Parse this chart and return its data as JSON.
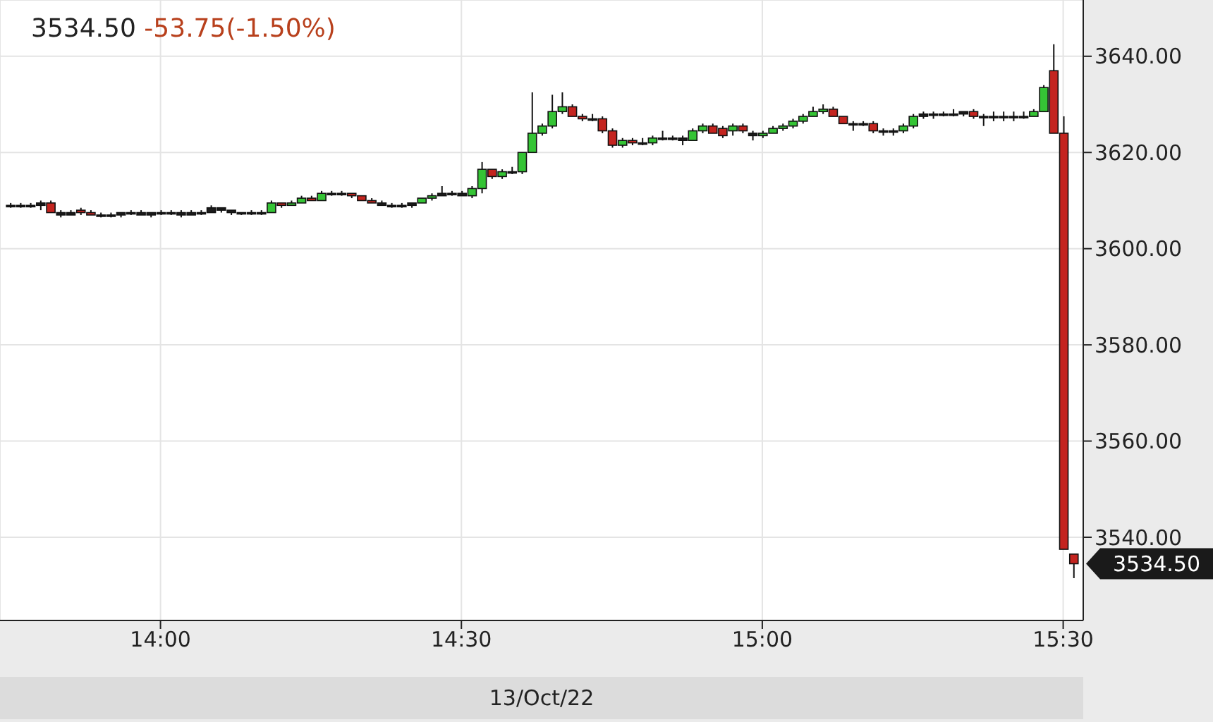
{
  "chart_data": {
    "type": "candlestick",
    "title": "3534.50",
    "subtitle": "-53.75(-1.50%)",
    "xlabel": "13/Oct/22",
    "annotations": [
      "3534.50"
    ],
    "x": [
      13.75,
      13.7667,
      13.7833,
      13.8,
      13.8167,
      13.8333,
      13.85,
      13.8667,
      13.8833,
      13.9,
      13.9167,
      13.9333,
      13.95,
      13.9667,
      13.9833,
      14,
      14.0167,
      14.0333,
      14.05,
      14.0667,
      14.0833,
      14.1,
      14.1167,
      14.1333,
      14.15,
      14.1667,
      14.1833,
      14.2,
      14.2167,
      14.2333,
      14.25,
      14.2667,
      14.2833,
      14.3,
      14.3167,
      14.3333,
      14.35,
      14.3667,
      14.3833,
      14.4,
      14.4167,
      14.4333,
      14.45,
      14.4667,
      14.4833,
      14.5,
      14.5167,
      14.5333,
      14.55,
      14.5667,
      14.5833,
      14.6,
      14.6167,
      14.6333,
      14.65,
      14.6667,
      14.6833,
      14.7,
      14.7167,
      14.7333,
      14.75,
      14.7667,
      14.7833,
      14.8,
      14.8167,
      14.8333,
      14.85,
      14.8667,
      14.8833,
      14.9,
      14.9167,
      14.9333,
      14.95,
      14.9667,
      14.9833,
      15,
      15.0167,
      15.0333,
      15.05,
      15.0667,
      15.0833,
      15.1,
      15.1167,
      15.1333,
      15.15,
      15.1667,
      15.1833,
      15.2,
      15.2167,
      15.2333,
      15.25,
      15.2667,
      15.2833,
      15.3,
      15.3167,
      15.3333,
      15.35,
      15.3667,
      15.3833,
      15.4,
      15.4167,
      15.4333,
      15.45,
      15.4667,
      15.4833,
      15.5,
      15.5167
    ],
    "ohlc": [
      [
        3609,
        3609.5,
        3608.5,
        3609
      ],
      [
        3609,
        3609.5,
        3608.5,
        3609
      ],
      [
        3609,
        3609.5,
        3608.5,
        3609
      ],
      [
        3609,
        3610,
        3608,
        3609.5
      ],
      [
        3609.5,
        3610,
        3607.5,
        3607.5
      ],
      [
        3607.5,
        3608,
        3606.5,
        3607
      ],
      [
        3607,
        3608,
        3607,
        3607.5
      ],
      [
        3608,
        3608.5,
        3607,
        3607.5
      ],
      [
        3607.5,
        3608,
        3607,
        3607
      ],
      [
        3607,
        3607.5,
        3606.5,
        3607
      ],
      [
        3607,
        3607.5,
        3606.5,
        3607
      ],
      [
        3607,
        3607.5,
        3606.5,
        3607.5
      ],
      [
        3607.5,
        3608,
        3607,
        3607.5
      ],
      [
        3607.5,
        3608,
        3607,
        3607
      ],
      [
        3607,
        3607.5,
        3606.5,
        3607.5
      ],
      [
        3607.5,
        3608,
        3607,
        3607.5
      ],
      [
        3607.5,
        3608,
        3607,
        3607.5
      ],
      [
        3607.5,
        3608,
        3606.5,
        3607
      ],
      [
        3607,
        3608,
        3607,
        3607.5
      ],
      [
        3607.5,
        3608,
        3607,
        3607.5
      ],
      [
        3607.5,
        3609,
        3607.5,
        3608.5
      ],
      [
        3608.5,
        3608.5,
        3607.5,
        3608
      ],
      [
        3608,
        3608,
        3607,
        3607.5
      ],
      [
        3607.5,
        3607.5,
        3607,
        3607.5
      ],
      [
        3607.5,
        3608,
        3607,
        3607.5
      ],
      [
        3607.5,
        3608,
        3607,
        3607.5
      ],
      [
        3607.5,
        3610,
        3607.5,
        3609.5
      ],
      [
        3609.5,
        3609.5,
        3608.5,
        3609
      ],
      [
        3609,
        3610,
        3609,
        3609.5
      ],
      [
        3609.5,
        3611,
        3609.5,
        3610.5
      ],
      [
        3610.5,
        3611,
        3610,
        3610
      ],
      [
        3610,
        3612,
        3610,
        3611.5
      ],
      [
        3611.5,
        3612,
        3611,
        3611.5
      ],
      [
        3611.5,
        3612,
        3611,
        3611.5
      ],
      [
        3611.5,
        3611.5,
        3610.5,
        3611
      ],
      [
        3611,
        3611,
        3610,
        3610
      ],
      [
        3610,
        3610.5,
        3609.5,
        3609.5
      ],
      [
        3609.5,
        3610,
        3609,
        3609
      ],
      [
        3609,
        3609.5,
        3608.5,
        3609
      ],
      [
        3609,
        3609.5,
        3608.5,
        3609
      ],
      [
        3609,
        3609.5,
        3608.5,
        3609.5
      ],
      [
        3609.5,
        3610.5,
        3609.5,
        3610.5
      ],
      [
        3610.5,
        3611.5,
        3610,
        3611
      ],
      [
        3611,
        3613,
        3611,
        3611.5
      ],
      [
        3611.5,
        3612,
        3611,
        3611.5
      ],
      [
        3611.5,
        3612,
        3611,
        3611
      ],
      [
        3611,
        3613,
        3610.5,
        3612.5
      ],
      [
        3612.5,
        3618,
        3611.5,
        3616.5
      ],
      [
        3616.5,
        3616.5,
        3614.5,
        3615
      ],
      [
        3615,
        3616.5,
        3614.5,
        3616
      ],
      [
        3616,
        3617,
        3615.5,
        3616
      ],
      [
        3616,
        3620,
        3615.5,
        3620
      ],
      [
        3620,
        3632.5,
        3620,
        3624
      ],
      [
        3624,
        3626,
        3623.5,
        3625.5
      ],
      [
        3625.5,
        3632,
        3625,
        3628.5
      ],
      [
        3628.5,
        3632.5,
        3628,
        3629.5
      ],
      [
        3629.5,
        3630,
        3627.5,
        3627.5
      ],
      [
        3627.5,
        3628,
        3626.5,
        3627
      ],
      [
        3627,
        3628,
        3626.5,
        3627
      ],
      [
        3627,
        3627.5,
        3624,
        3624.5
      ],
      [
        3624.5,
        3625,
        3621,
        3621.5
      ],
      [
        3621.5,
        3623,
        3621,
        3622.5
      ],
      [
        3622.5,
        3623,
        3621.5,
        3622
      ],
      [
        3622,
        3623,
        3621.5,
        3622
      ],
      [
        3622,
        3623.5,
        3621.5,
        3623
      ],
      [
        3623,
        3624.5,
        3622.5,
        3623
      ],
      [
        3623,
        3623.5,
        3622.5,
        3623
      ],
      [
        3623,
        3623.5,
        3621.5,
        3622.5
      ],
      [
        3622.5,
        3625,
        3622.5,
        3624.5
      ],
      [
        3624.5,
        3626,
        3624,
        3625.5
      ],
      [
        3625.5,
        3626,
        3624,
        3624
      ],
      [
        3625,
        3625.5,
        3623,
        3623.5
      ],
      [
        3624.5,
        3626,
        3623.5,
        3625.5
      ],
      [
        3625.5,
        3626,
        3624,
        3624.5
      ],
      [
        3624,
        3624.5,
        3622.5,
        3623.5
      ],
      [
        3623.5,
        3624.5,
        3623,
        3624
      ],
      [
        3624,
        3625.5,
        3624,
        3625
      ],
      [
        3625,
        3626,
        3624.5,
        3625.5
      ],
      [
        3625.5,
        3627,
        3625,
        3626.5
      ],
      [
        3626.5,
        3628,
        3626,
        3627.5
      ],
      [
        3627.5,
        3629.5,
        3627.5,
        3628.5
      ],
      [
        3628.5,
        3630,
        3628,
        3629
      ],
      [
        3629,
        3629.5,
        3627.5,
        3627.5
      ],
      [
        3627.5,
        3627.5,
        3626,
        3626
      ],
      [
        3626,
        3626.5,
        3624.5,
        3626
      ],
      [
        3626,
        3626.5,
        3625.5,
        3626
      ],
      [
        3626,
        3626.5,
        3624,
        3624.5
      ],
      [
        3624.5,
        3625,
        3623.5,
        3624.5
      ],
      [
        3624.5,
        3625,
        3623.5,
        3624.5
      ],
      [
        3624.5,
        3626,
        3624,
        3625.5
      ],
      [
        3625.5,
        3628,
        3625,
        3627.5
      ],
      [
        3627.5,
        3628.5,
        3627,
        3628
      ],
      [
        3628,
        3628.5,
        3627,
        3628
      ],
      [
        3628,
        3628.5,
        3627.5,
        3628
      ],
      [
        3628,
        3629,
        3627.5,
        3628
      ],
      [
        3628,
        3628.5,
        3627.5,
        3628.5
      ],
      [
        3628.5,
        3629,
        3627,
        3627.5
      ],
      [
        3627.5,
        3628,
        3625.5,
        3627.5
      ],
      [
        3627.5,
        3628.5,
        3626.5,
        3627.5
      ],
      [
        3627.5,
        3628.5,
        3626.5,
        3627.5
      ],
      [
        3627.5,
        3628.5,
        3626.5,
        3627.5
      ],
      [
        3627.5,
        3628.5,
        3627,
        3627.5
      ],
      [
        3627.5,
        3629,
        3627.5,
        3628.5
      ],
      [
        3628.5,
        3634,
        3628.5,
        3633.5
      ],
      [
        3637,
        3642.5,
        3624,
        3624
      ],
      [
        3624,
        3627.5,
        3537.5,
        3537.5
      ],
      [
        3536.5,
        3536.5,
        3531.5,
        3534.5
      ]
    ],
    "colors": [
      "#1c1c1c",
      "#1c1c1c",
      "#1c1c1c",
      "#1c1c1c",
      "#c4241f",
      "#1c1c1c",
      "#1c1c1c",
      "#c4241f",
      "#c4241f",
      "#1c1c1c",
      "#1c1c1c",
      "#1c1c1c",
      "#1c1c1c",
      "#1c1c1c",
      "#1c1c1c",
      "#1c1c1c",
      "#1c1c1c",
      "#1c1c1c",
      "#1c1c1c",
      "#1c1c1c",
      "#1c1c1c",
      "#1c1c1c",
      "#1c1c1c",
      "#1c1c1c",
      "#1c1c1c",
      "#1c1c1c",
      "#35c435",
      "#c4241f",
      "#35c435",
      "#35c435",
      "#c4241f",
      "#35c435",
      "#1c1c1c",
      "#1c1c1c",
      "#c4241f",
      "#c4241f",
      "#c4241f",
      "#1c1c1c",
      "#1c1c1c",
      "#1c1c1c",
      "#1c1c1c",
      "#35c435",
      "#35c435",
      "#1c1c1c",
      "#1c1c1c",
      "#1c1c1c",
      "#35c435",
      "#35c435",
      "#c4241f",
      "#35c435",
      "#1c1c1c",
      "#35c435",
      "#35c435",
      "#35c435",
      "#35c435",
      "#35c435",
      "#c4241f",
      "#c4241f",
      "#1c1c1c",
      "#c4241f",
      "#c4241f",
      "#35c435",
      "#c4241f",
      "#1c1c1c",
      "#35c435",
      "#1c1c1c",
      "#1c1c1c",
      "#1c1c1c",
      "#35c435",
      "#35c435",
      "#c4241f",
      "#c4241f",
      "#35c435",
      "#c4241f",
      "#1c1c1c",
      "#35c435",
      "#35c435",
      "#35c435",
      "#35c435",
      "#35c435",
      "#35c435",
      "#35c435",
      "#c4241f",
      "#c4241f",
      "#1c1c1c",
      "#1c1c1c",
      "#c4241f",
      "#1c1c1c",
      "#1c1c1c",
      "#35c435",
      "#35c435",
      "#1c1c1c",
      "#1c1c1c",
      "#1c1c1c",
      "#1c1c1c",
      "#1c1c1c",
      "#c4241f",
      "#1c1c1c",
      "#1c1c1c",
      "#1c1c1c",
      "#1c1c1c",
      "#1c1c1c",
      "#35c435",
      "#35c435",
      "#c4241f",
      "#c4241f",
      "#c4241f"
    ],
    "xlim": [
      13.7333,
      15.5333
    ],
    "xticks": [
      {
        "value": 14,
        "label": "14:00"
      },
      {
        "value": 14.5,
        "label": "14:30"
      },
      {
        "value": 15,
        "label": "15:00"
      },
      {
        "value": 15.5,
        "label": "15:30"
      }
    ],
    "ylim": [
      3522.7,
      3651.7
    ],
    "yticks": [
      {
        "value": 3540,
        "label": "3540.00"
      },
      {
        "value": 3560,
        "label": "3560.00"
      },
      {
        "value": 3580,
        "label": "3580.00"
      },
      {
        "value": 3600,
        "label": "3600.00"
      },
      {
        "value": 3620,
        "label": "3620.00"
      },
      {
        "value": 3640,
        "label": "3640.00"
      }
    ],
    "grid": true
  }
}
